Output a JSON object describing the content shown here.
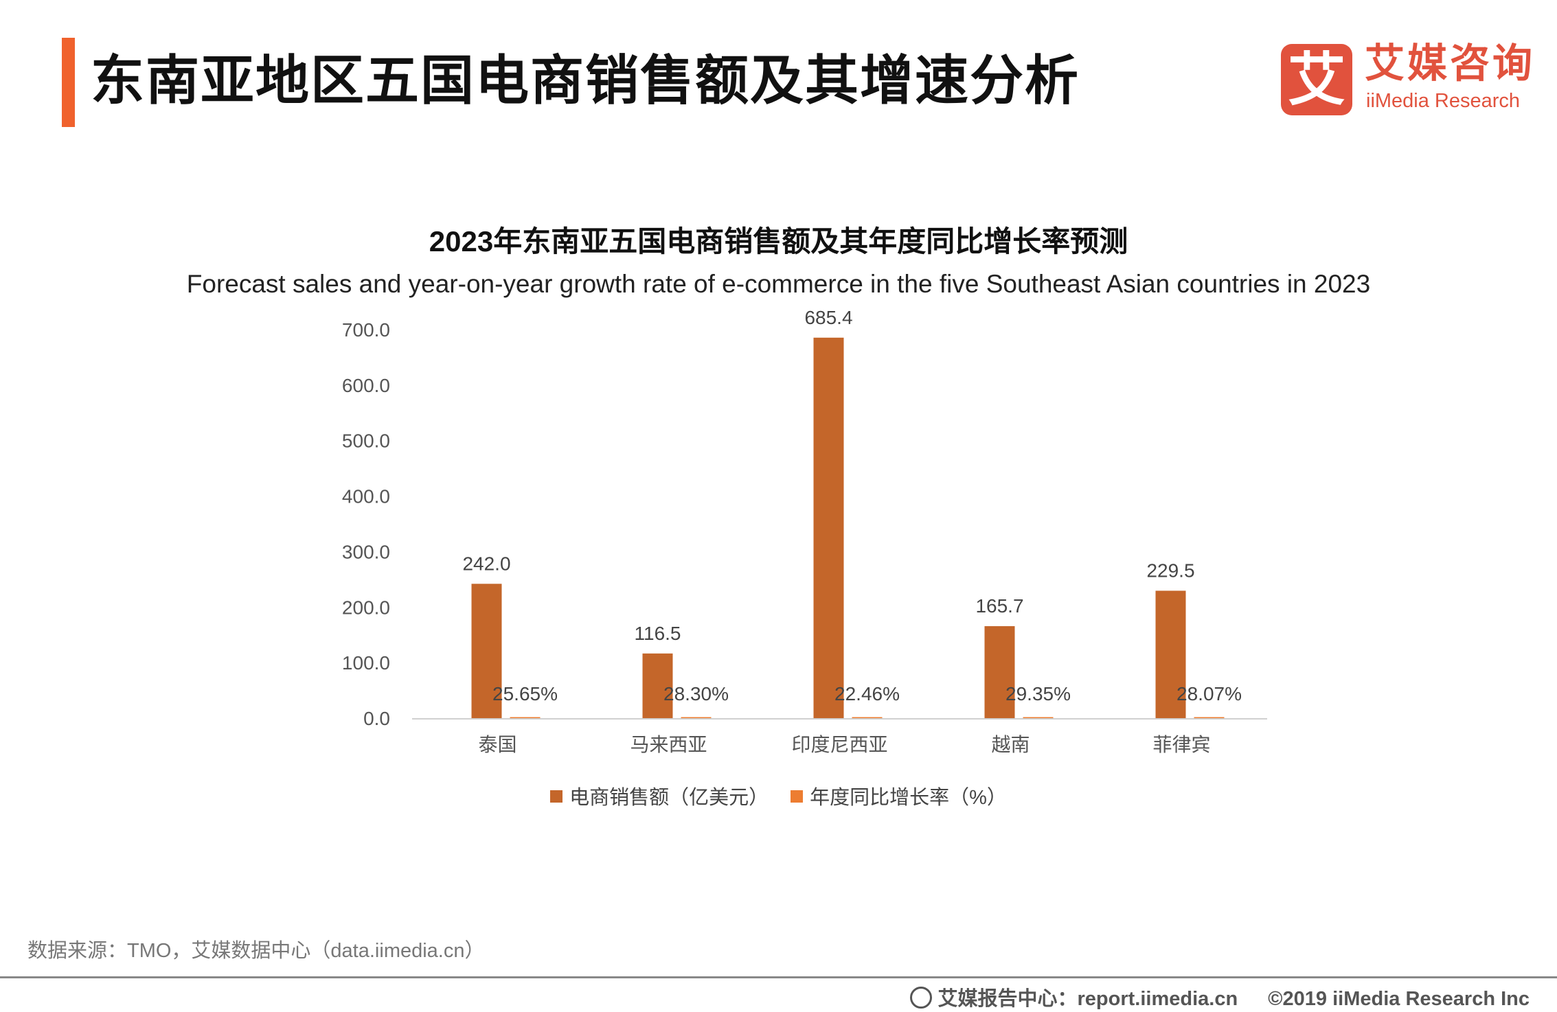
{
  "header": {
    "title": "东南亚地区五国电商销售额及其增速分析",
    "logo_mark": "艾",
    "logo_cn": "艾媒咨询",
    "logo_en": "iiMedia Research"
  },
  "chart_data": {
    "type": "bar",
    "title": "2023年东南亚五国电商销售额及其年度同比增长率预测",
    "subtitle": "Forecast sales and year-on-year growth rate of e-commerce in the five Southeast Asian countries in 2023",
    "categories": [
      "泰国",
      "马来西亚",
      "印度尼西亚",
      "越南",
      "菲律宾"
    ],
    "yticks": [
      "0.0",
      "100.0",
      "200.0",
      "300.0",
      "400.0",
      "500.0",
      "600.0",
      "700.0"
    ],
    "ylim": [
      0,
      700
    ],
    "grid": false,
    "legend_position": "bottom",
    "series": [
      {
        "name": "电商销售额（亿美元）",
        "values": [
          242.0,
          116.5,
          685.4,
          165.7,
          229.5
        ],
        "labels": [
          "242.0",
          "116.5",
          "685.4",
          "165.7",
          "229.5"
        ],
        "color": "#c4662a"
      },
      {
        "name": "年度同比增长率（%）",
        "values": [
          0.2565,
          0.283,
          0.2246,
          0.2935,
          0.2807
        ],
        "labels": [
          "25.65%",
          "28.30%",
          "22.46%",
          "29.35%",
          "28.07%"
        ],
        "color": "#ed7d31"
      }
    ]
  },
  "footer": {
    "source": "数据来源：TMO，艾媒数据中心（data.iimedia.cn）",
    "report": "艾媒报告中心：report.iimedia.cn",
    "copyright": "©2019  iiMedia Research  Inc"
  }
}
